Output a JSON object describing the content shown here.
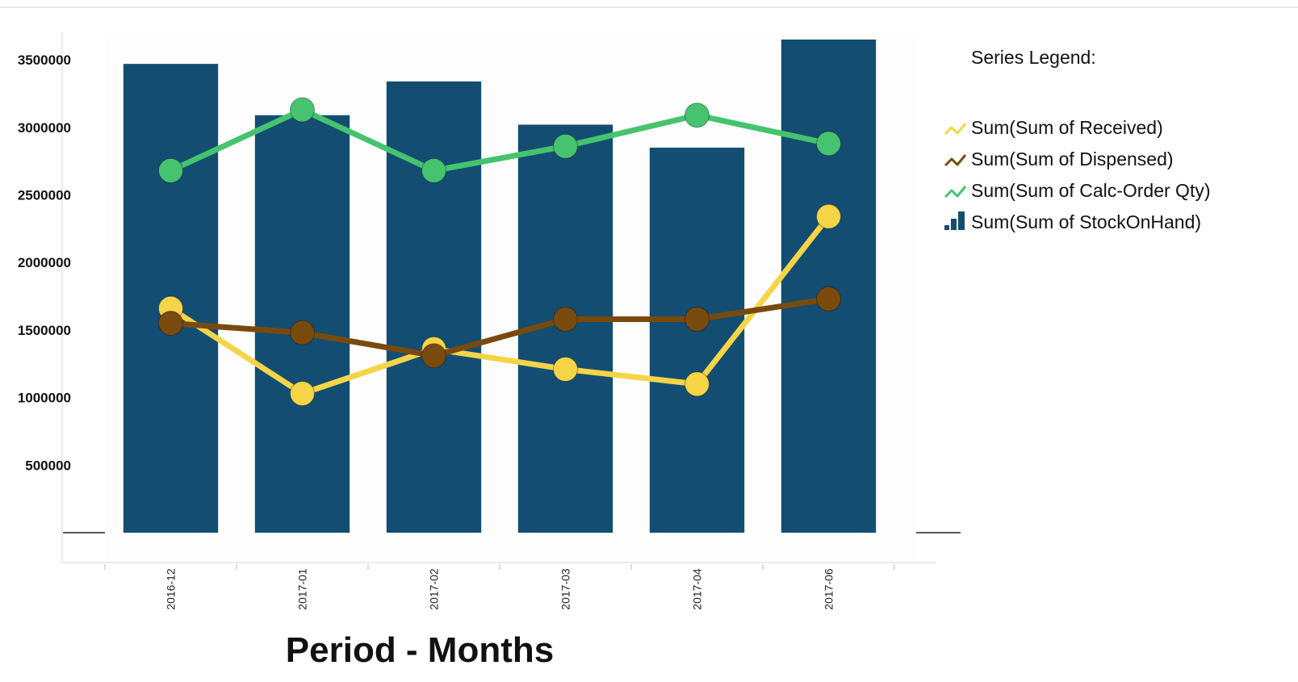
{
  "chart_data": {
    "type": "bar",
    "categories": [
      "2016-12",
      "2017-01",
      "2017-02",
      "2017-03",
      "2017-04",
      "2017-06"
    ],
    "xlabel": "Period -  Months",
    "ylabel": "",
    "ylim": [
      0,
      3650000
    ],
    "yticks": [
      "500000",
      "1000000",
      "1500000",
      "2000000",
      "2500000",
      "3000000",
      "3500000"
    ],
    "legend_title": "Series Legend:",
    "legend_position": "top-right",
    "series": [
      {
        "name": "Sum(Sum of Received)",
        "type": "line",
        "color": "#f5d547",
        "values": [
          1660000,
          1030000,
          1360000,
          1210000,
          1100000,
          2340000
        ]
      },
      {
        "name": "Sum(Sum of Dispensed)",
        "type": "line",
        "color": "#7a4a0c",
        "values": [
          1550000,
          1480000,
          1310000,
          1580000,
          1580000,
          1730000
        ]
      },
      {
        "name": "Sum(Sum of Calc-Order Qty)",
        "type": "line",
        "color": "#45c36f",
        "values": [
          2680000,
          3130000,
          2680000,
          2860000,
          3090000,
          2880000
        ]
      },
      {
        "name": "Sum(Sum of StockOnHand)",
        "type": "bar",
        "color": "#134e72",
        "values": [
          3470000,
          3090000,
          3340000,
          3020000,
          2850000,
          3650000
        ]
      }
    ]
  }
}
